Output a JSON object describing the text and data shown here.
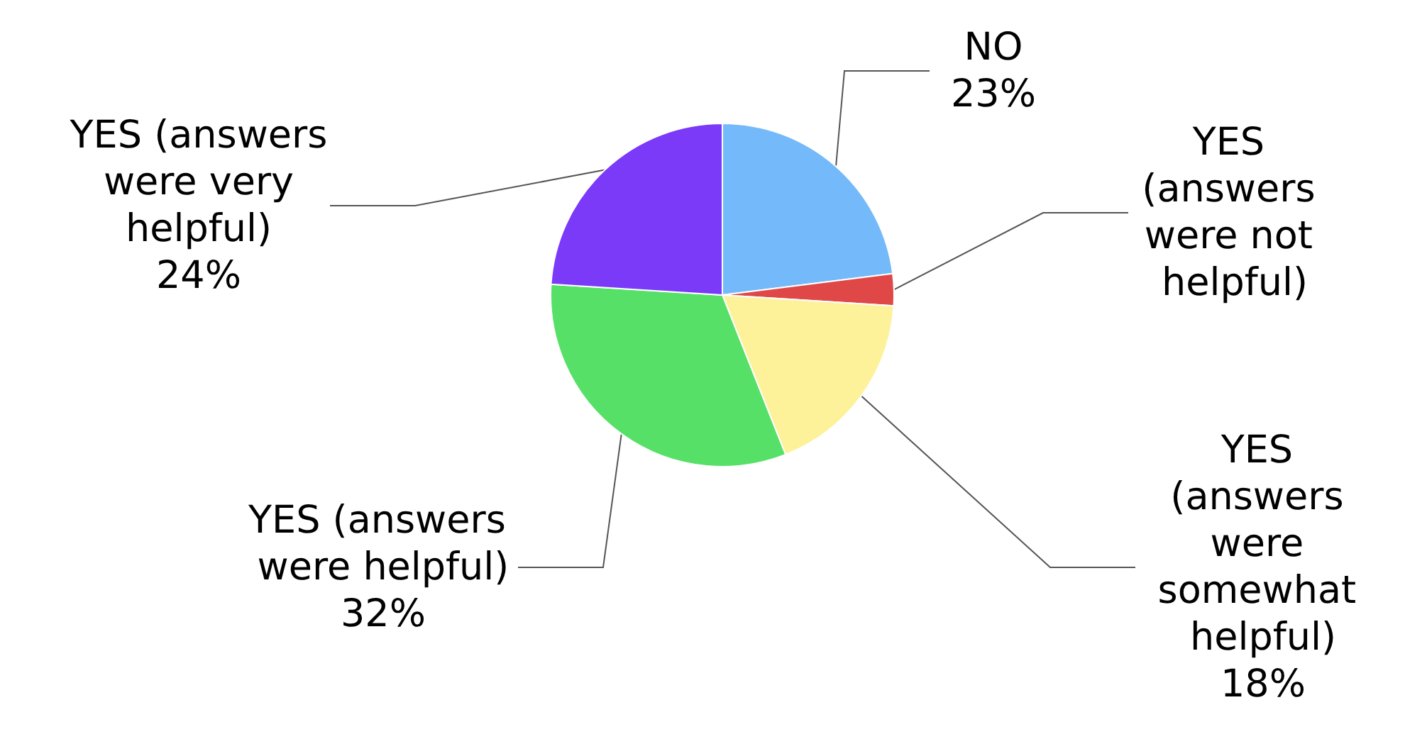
{
  "chart_data": {
    "type": "pie",
    "categories": [
      "NO",
      "YES (answers were not helpful)",
      "YES (answers were somewhat helpful)",
      "YES (answers were helpful)",
      "YES (answers were very helpful)"
    ],
    "values": [
      23,
      3,
      18,
      32,
      24
    ],
    "value_labels": [
      "23%",
      null,
      "18%",
      "32%",
      "24%"
    ],
    "colors": [
      "#74b9f9",
      "#e04848",
      "#fdf29a",
      "#57e067",
      "#7b3af8"
    ],
    "legend": false
  }
}
